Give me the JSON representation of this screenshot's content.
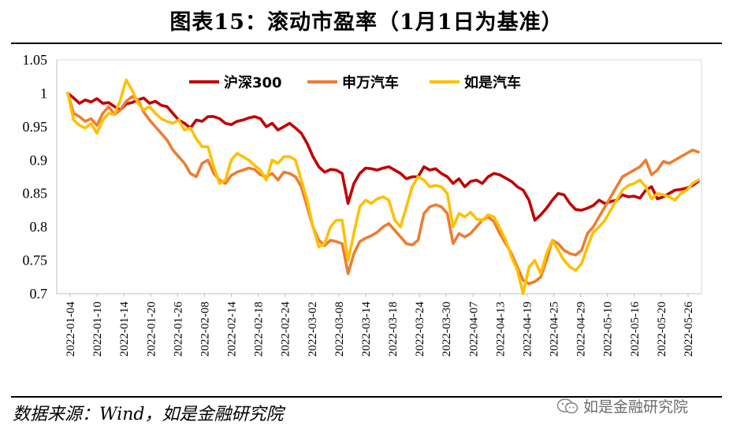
{
  "title": "图表15：滚动市盈率（1月1日为基准）",
  "source": "数据来源：Wind，如是金融研究院",
  "watermark": "如是金融研究院",
  "icons": {
    "watermark": "wechat-icon"
  },
  "chart_data": {
    "type": "line",
    "title": "图表15：滚动市盈率（1月1日为基准）",
    "xlabel": "",
    "ylabel": "",
    "ylim": [
      0.7,
      1.05
    ],
    "yticks": [
      "0.7",
      "0.75",
      "0.8",
      "0.85",
      "0.9",
      "0.95",
      "1",
      "1.05"
    ],
    "grid": false,
    "legend_position": "top",
    "x_tick_labels": [
      "2022-01-04",
      "2022-01-10",
      "2022-01-14",
      "2022-01-20",
      "2022-01-26",
      "2022-02-08",
      "2022-02-14",
      "2022-02-18",
      "2022-02-24",
      "2022-03-02",
      "2022-03-08",
      "2022-03-14",
      "2022-03-18",
      "2022-03-24",
      "2022-03-30",
      "2022-04-07",
      "2022-04-13",
      "2022-04-19",
      "2022-04-25",
      "2022-04-29",
      "2022-05-10",
      "2022-05-16",
      "2022-05-20",
      "2022-05-26"
    ],
    "series": [
      {
        "name": "沪深300",
        "color": "#c00000",
        "values": [
          1.0,
          0.993,
          0.985,
          0.99,
          0.987,
          0.992,
          0.985,
          0.986,
          0.98,
          0.975,
          0.984,
          0.986,
          0.99,
          0.993,
          0.985,
          0.988,
          0.982,
          0.98,
          0.97,
          0.96,
          0.955,
          0.948,
          0.96,
          0.958,
          0.965,
          0.965,
          0.962,
          0.955,
          0.953,
          0.958,
          0.96,
          0.963,
          0.965,
          0.962,
          0.95,
          0.955,
          0.945,
          0.95,
          0.955,
          0.948,
          0.94,
          0.925,
          0.905,
          0.89,
          0.882,
          0.886,
          0.885,
          0.88,
          0.835,
          0.865,
          0.88,
          0.888,
          0.887,
          0.885,
          0.888,
          0.89,
          0.885,
          0.88,
          0.872,
          0.875,
          0.875,
          0.89,
          0.885,
          0.887,
          0.88,
          0.875,
          0.865,
          0.872,
          0.86,
          0.868,
          0.87,
          0.865,
          0.875,
          0.88,
          0.878,
          0.873,
          0.868,
          0.86,
          0.855,
          0.84,
          0.81,
          0.818,
          0.828,
          0.84,
          0.85,
          0.848,
          0.835,
          0.826,
          0.825,
          0.828,
          0.832,
          0.84,
          0.835,
          0.838,
          0.84,
          0.848,
          0.845,
          0.846,
          0.843,
          0.855,
          0.86,
          0.842,
          0.845,
          0.85,
          0.855,
          0.856,
          0.858,
          0.862,
          0.868
        ]
      },
      {
        "name": "申万汽车",
        "color": "#ed7d31",
        "values": [
          1.0,
          0.97,
          0.965,
          0.958,
          0.962,
          0.952,
          0.97,
          0.98,
          0.968,
          0.975,
          0.988,
          0.995,
          0.99,
          0.972,
          0.96,
          0.95,
          0.94,
          0.93,
          0.915,
          0.905,
          0.895,
          0.88,
          0.875,
          0.895,
          0.9,
          0.88,
          0.87,
          0.865,
          0.877,
          0.882,
          0.885,
          0.888,
          0.886,
          0.878,
          0.875,
          0.88,
          0.87,
          0.882,
          0.88,
          0.875,
          0.86,
          0.83,
          0.8,
          0.78,
          0.772,
          0.78,
          0.778,
          0.775,
          0.73,
          0.76,
          0.778,
          0.783,
          0.787,
          0.792,
          0.8,
          0.805,
          0.795,
          0.785,
          0.775,
          0.773,
          0.78,
          0.82,
          0.83,
          0.833,
          0.83,
          0.82,
          0.775,
          0.79,
          0.785,
          0.79,
          0.8,
          0.81,
          0.815,
          0.808,
          0.79,
          0.775,
          0.76,
          0.74,
          0.72,
          0.715,
          0.718,
          0.725,
          0.75,
          0.78,
          0.775,
          0.765,
          0.76,
          0.758,
          0.765,
          0.79,
          0.8,
          0.815,
          0.83,
          0.845,
          0.86,
          0.875,
          0.88,
          0.885,
          0.89,
          0.9,
          0.878,
          0.885,
          0.898,
          0.895,
          0.9,
          0.905,
          0.91,
          0.915,
          0.912
        ]
      },
      {
        "name": "如是汽车",
        "color": "#ffc000",
        "values": [
          1.0,
          0.96,
          0.952,
          0.948,
          0.955,
          0.94,
          0.96,
          0.97,
          0.968,
          0.99,
          1.02,
          1.005,
          0.985,
          0.975,
          0.98,
          0.97,
          0.962,
          0.958,
          0.955,
          0.96,
          0.945,
          0.948,
          0.932,
          0.92,
          0.92,
          0.89,
          0.865,
          0.87,
          0.9,
          0.91,
          0.905,
          0.9,
          0.892,
          0.885,
          0.87,
          0.9,
          0.895,
          0.905,
          0.905,
          0.9,
          0.87,
          0.84,
          0.8,
          0.77,
          0.775,
          0.8,
          0.81,
          0.81,
          0.75,
          0.79,
          0.83,
          0.84,
          0.835,
          0.842,
          0.845,
          0.84,
          0.81,
          0.8,
          0.83,
          0.86,
          0.875,
          0.87,
          0.86,
          0.862,
          0.86,
          0.85,
          0.8,
          0.82,
          0.815,
          0.822,
          0.812,
          0.81,
          0.818,
          0.815,
          0.798,
          0.78,
          0.755,
          0.735,
          0.7,
          0.74,
          0.75,
          0.73,
          0.76,
          0.78,
          0.765,
          0.75,
          0.74,
          0.735,
          0.745,
          0.77,
          0.792,
          0.8,
          0.81,
          0.825,
          0.84,
          0.855,
          0.862,
          0.865,
          0.87,
          0.86,
          0.842,
          0.85,
          0.848,
          0.845,
          0.84,
          0.85,
          0.855,
          0.865,
          0.87
        ]
      }
    ]
  }
}
